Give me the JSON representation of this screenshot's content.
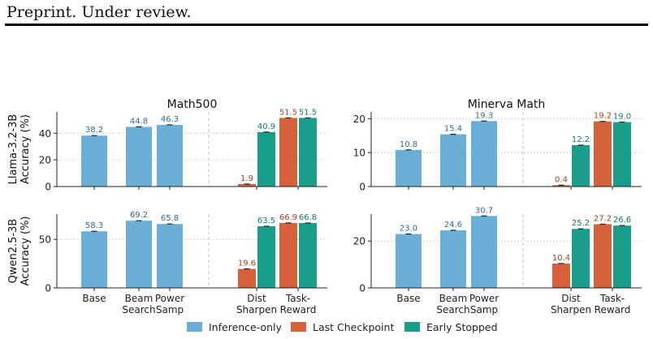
{
  "header": {
    "text": "Preprint. Under review."
  },
  "colors": {
    "inference": "#6baed6",
    "last": "#d6603a",
    "early": "#1a9e8c"
  },
  "chart_data": {
    "type": "bar",
    "categories": [
      [
        "Base"
      ],
      [
        "Beam",
        "Search"
      ],
      [
        "Power",
        "Samp"
      ],
      [
        "Dist",
        "Sharpen"
      ],
      [
        "Task-",
        "Reward"
      ]
    ],
    "legend": [
      "Inference-only",
      "Last Checkpoint",
      "Early Stopped"
    ],
    "legend_position": "bottom",
    "panels": [
      {
        "title": "Math500",
        "ylabel": [
          "Llama-3.2-3B",
          "Accuracy (%)"
        ],
        "ylim": [
          0,
          56
        ],
        "yticks": [
          0,
          20,
          40
        ],
        "values": {
          "inference": [
            38.2,
            44.8,
            46.3
          ],
          "dist_sharpen": [
            1.9,
            40.9
          ],
          "task_reward": [
            51.5,
            51.5
          ]
        },
        "labels": {
          "inference": [
            "38.2",
            "44.8",
            "46.3"
          ],
          "dist_sharpen": [
            "1.9",
            "40.9"
          ],
          "task_reward": [
            "51.5",
            "51.5"
          ]
        }
      },
      {
        "title": "Minerva Math",
        "ylabel": null,
        "ylim": [
          0,
          22
        ],
        "yticks": [
          0,
          10,
          20
        ],
        "values": {
          "inference": [
            10.8,
            15.4,
            19.3
          ],
          "dist_sharpen": [
            0.4,
            12.2
          ],
          "task_reward": [
            19.2,
            19.0
          ]
        },
        "labels": {
          "inference": [
            "10.8",
            "15.4",
            "19.3"
          ],
          "dist_sharpen": [
            "0.4",
            "12.2"
          ],
          "task_reward": [
            "19.2",
            "19.0"
          ]
        }
      },
      {
        "title": "",
        "ylabel": [
          "Qwen2.5-3B",
          "Accuracy (%)"
        ],
        "ylim": [
          0,
          76
        ],
        "yticks": [
          0,
          50
        ],
        "values": {
          "inference": [
            58.3,
            69.2,
            65.8
          ],
          "dist_sharpen": [
            19.6,
            63.5
          ],
          "task_reward": [
            66.9,
            66.8
          ]
        },
        "labels": {
          "inference": [
            "58.3",
            "69.2",
            "65.8"
          ],
          "dist_sharpen": [
            "19.6",
            "63.5"
          ],
          "task_reward": [
            "66.9",
            "66.8"
          ]
        }
      },
      {
        "title": "",
        "ylabel": null,
        "ylim": [
          0,
          31.5
        ],
        "yticks": [
          0,
          20
        ],
        "values": {
          "inference": [
            23.0,
            24.6,
            30.7
          ],
          "dist_sharpen": [
            10.4,
            25.2
          ],
          "task_reward": [
            27.2,
            26.6
          ]
        },
        "labels": {
          "inference": [
            "23.0",
            "24.6",
            "30.7"
          ],
          "dist_sharpen": [
            "10.4",
            "25.2"
          ],
          "task_reward": [
            "27.2",
            "26.6"
          ]
        }
      }
    ]
  }
}
